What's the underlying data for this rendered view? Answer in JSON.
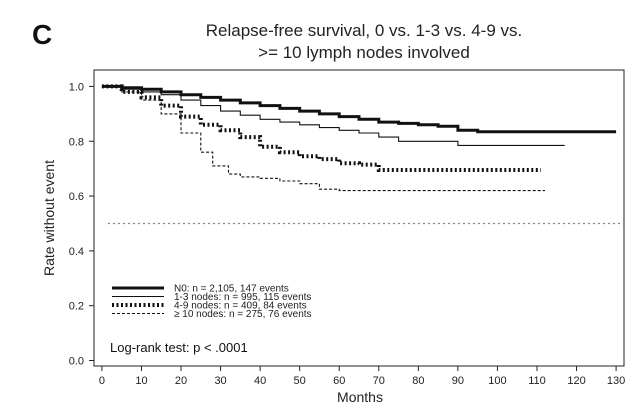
{
  "panel_letter": "C",
  "chart_data": {
    "type": "line",
    "title_line1": "Relapse-free survival, 0 vs. 1-3 vs. 4-9 vs.",
    "title_line2": ">= 10 lymph  nodes involved",
    "xlabel": "Months",
    "ylabel": "Rate without event",
    "xlim": [
      -2,
      132
    ],
    "ylim": [
      -0.02,
      1.06
    ],
    "xticks": [
      0,
      10,
      20,
      30,
      40,
      50,
      60,
      70,
      80,
      90,
      100,
      110,
      120,
      130
    ],
    "yticks": [
      "0.0",
      "0.2",
      "0.4",
      "0.6",
      "0.8",
      "1.0"
    ],
    "reference_line": 0.5,
    "legend_position": "bottom-left",
    "annotation": "Log-rank test: p < .0001",
    "series": [
      {
        "name": "N0: n = 2,105, 147 events",
        "style": "thick-solid",
        "x": [
          0,
          5,
          10,
          15,
          20,
          25,
          30,
          35,
          40,
          45,
          50,
          55,
          60,
          65,
          70,
          75,
          80,
          85,
          90,
          95,
          100,
          110,
          120,
          130
        ],
        "y": [
          1.0,
          0.995,
          0.99,
          0.98,
          0.97,
          0.96,
          0.95,
          0.94,
          0.93,
          0.92,
          0.91,
          0.9,
          0.89,
          0.88,
          0.87,
          0.865,
          0.86,
          0.855,
          0.84,
          0.835,
          0.835,
          0.835,
          0.835,
          0.835
        ]
      },
      {
        "name": "1-3 nodes: n = 995, 115 events",
        "style": "thin-solid",
        "x": [
          0,
          5,
          10,
          15,
          20,
          25,
          30,
          35,
          40,
          45,
          50,
          55,
          60,
          65,
          70,
          75,
          80,
          85,
          90,
          100,
          110,
          117
        ],
        "y": [
          1.0,
          0.99,
          0.98,
          0.97,
          0.95,
          0.93,
          0.91,
          0.895,
          0.88,
          0.87,
          0.86,
          0.85,
          0.84,
          0.83,
          0.815,
          0.8,
          0.8,
          0.8,
          0.785,
          0.785,
          0.785,
          0.785
        ]
      },
      {
        "name": "4-9 nodes: n = 409, 84 events",
        "style": "thick-dotted",
        "x": [
          0,
          5,
          10,
          15,
          20,
          25,
          30,
          35,
          40,
          45,
          50,
          55,
          60,
          65,
          70,
          80,
          90,
          100,
          111
        ],
        "y": [
          1.0,
          0.98,
          0.96,
          0.93,
          0.89,
          0.86,
          0.84,
          0.815,
          0.78,
          0.76,
          0.745,
          0.735,
          0.72,
          0.715,
          0.695,
          0.695,
          0.695,
          0.695,
          0.695
        ]
      },
      {
        "name": "≥ 10 nodes: n = 275, 76 events",
        "style": "thin-dashed",
        "x": [
          0,
          5,
          10,
          15,
          20,
          25,
          28,
          32,
          35,
          40,
          45,
          50,
          55,
          60,
          70,
          80,
          90,
          100,
          112
        ],
        "y": [
          1.0,
          0.98,
          0.95,
          0.9,
          0.83,
          0.76,
          0.71,
          0.68,
          0.67,
          0.665,
          0.655,
          0.645,
          0.625,
          0.62,
          0.62,
          0.62,
          0.62,
          0.62,
          0.62
        ]
      }
    ]
  }
}
